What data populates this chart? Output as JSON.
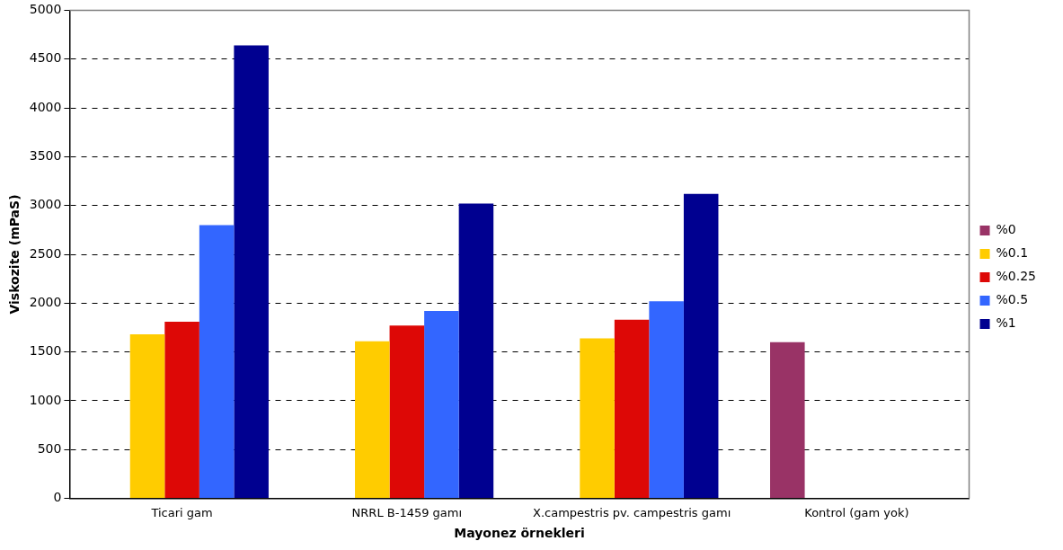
{
  "chart_data": {
    "type": "bar",
    "xlabel": "Mayonez örnekleri",
    "ylabel": "Viskozite (mPaS)",
    "categories": [
      "Ticari gam",
      "NRRL B-1459 gamı",
      "X.campestris pv. campestris gamı",
      "Kontrol (gam yok)"
    ],
    "series": [
      {
        "name": "%0",
        "color": "#993366",
        "values": [
          null,
          null,
          null,
          1600
        ]
      },
      {
        "name": "%0.1",
        "color": "#ffcc00",
        "values": [
          1680,
          1610,
          1640,
          null
        ]
      },
      {
        "name": "%0.25",
        "color": "#dd0806",
        "values": [
          1810,
          1770,
          1830,
          null
        ]
      },
      {
        "name": "%0.5",
        "color": "#3366ff",
        "values": [
          2800,
          1920,
          2020,
          null
        ]
      },
      {
        "name": "%1",
        "color": "#000090",
        "values": [
          4640,
          3020,
          3120,
          null
        ]
      }
    ],
    "ylim": [
      0,
      5000
    ],
    "yticks": [
      0,
      500,
      1000,
      1500,
      2000,
      2500,
      3000,
      3500,
      4000,
      4500,
      5000
    ],
    "grid": "y",
    "legend": "right"
  }
}
